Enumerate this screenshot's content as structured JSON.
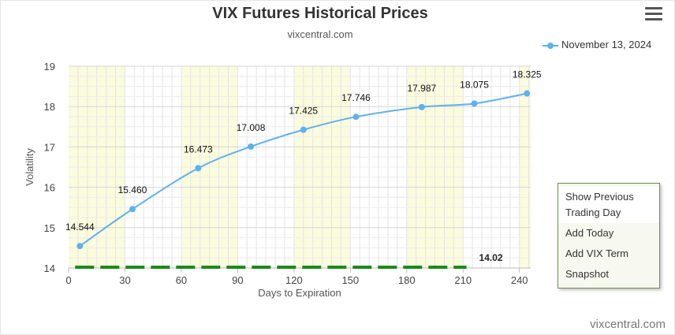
{
  "header": {
    "title": "VIX Futures Historical Prices",
    "subtitle": "vixcentral.com"
  },
  "legend": {
    "label": "November 13, 2024"
  },
  "menu_icon": "hamburger-menu-icon",
  "context_menu": {
    "items": [
      "Show Previous Trading Day",
      "Add Today",
      "Add VIX Term",
      "Snapshot"
    ]
  },
  "credits": "vixcentral.com",
  "chart_data": {
    "type": "line",
    "series": [
      {
        "name": "November 13, 2024",
        "color": "#5fb1ee",
        "x": [
          6,
          34,
          69,
          97,
          125,
          153,
          188,
          216,
          244
        ],
        "values": [
          14.544,
          15.46,
          16.473,
          17.008,
          17.425,
          17.746,
          17.987,
          18.075,
          18.325
        ],
        "labels": [
          "14.544",
          "15.460",
          "16.473",
          "17.008",
          "17.425",
          "17.746",
          "17.987",
          "18.075",
          "18.325"
        ]
      }
    ],
    "reference_line": {
      "value": 14.02,
      "label": "14.02",
      "color": "#1a8a1a",
      "x_range": [
        6,
        216
      ]
    },
    "xlabel": "Days to Expiration",
    "ylabel": "Volatility",
    "xlim": [
      0,
      246
    ],
    "ylim": [
      14,
      19
    ],
    "xticks": [
      0,
      30,
      60,
      90,
      120,
      150,
      180,
      210,
      240
    ],
    "yticks": [
      14,
      15,
      16,
      17,
      18,
      19
    ],
    "bands": [
      [
        0,
        30
      ],
      [
        60,
        90
      ],
      [
        120,
        150
      ],
      [
        180,
        210
      ],
      [
        240,
        246
      ]
    ],
    "band_color": "#fbfbdd",
    "grid": true
  }
}
